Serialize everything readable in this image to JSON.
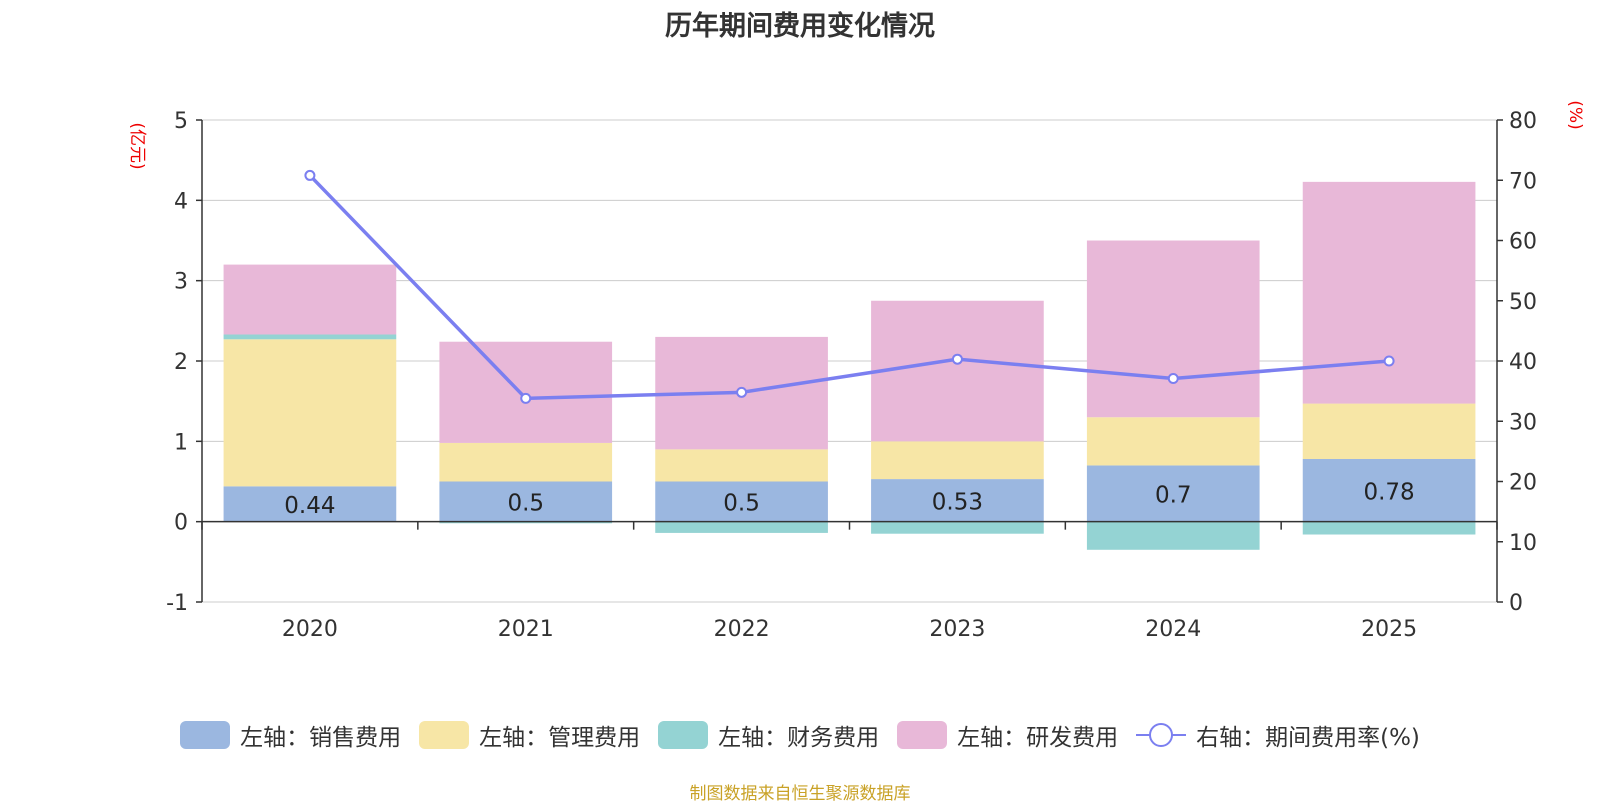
{
  "chart_data": {
    "type": "bar",
    "title": "历年期间费用变化情况",
    "categories": [
      "2020",
      "2021",
      "2022",
      "2023",
      "2024",
      "2025"
    ],
    "stacked": true,
    "left_axis": {
      "label": "(亿元)",
      "ylim": [
        -1,
        5
      ],
      "ticks": [
        "-1",
        "0",
        "1",
        "2",
        "3",
        "4",
        "5"
      ]
    },
    "right_axis": {
      "label": "(%)",
      "ylim": [
        0,
        80
      ],
      "ticks": [
        "0",
        "10",
        "20",
        "30",
        "40",
        "50",
        "60",
        "70",
        "80"
      ]
    },
    "series": [
      {
        "name": "左轴：销售费用",
        "axis": "left",
        "type": "bar",
        "color": "#9bb7e0",
        "values": [
          0.44,
          0.5,
          0.5,
          0.53,
          0.7,
          0.78
        ],
        "labels": [
          "0.44",
          "0.5",
          "0.5",
          "0.53",
          "0.7",
          "0.78"
        ]
      },
      {
        "name": "左轴：管理费用",
        "axis": "left",
        "type": "bar",
        "color": "#f7e6a6",
        "values": [
          1.83,
          0.48,
          0.4,
          0.47,
          0.6,
          0.69
        ]
      },
      {
        "name": "左轴：财务费用",
        "axis": "left",
        "type": "bar",
        "color": "#94d3d3",
        "values": [
          0.06,
          -0.02,
          -0.14,
          -0.15,
          -0.35,
          -0.16
        ]
      },
      {
        "name": "左轴：研发费用",
        "axis": "left",
        "type": "bar",
        "color": "#e8b8d8",
        "values": [
          0.87,
          1.26,
          1.4,
          1.75,
          2.2,
          2.76
        ]
      },
      {
        "name": "右轴：期间费用率(%)",
        "axis": "right",
        "type": "line",
        "color": "#7b7ff0",
        "values": [
          70.8,
          33.8,
          34.8,
          40.3,
          37.1,
          40.0
        ]
      }
    ],
    "legend_position": "bottom",
    "grid": true
  },
  "source_note": "制图数据来自恒生聚源数据库"
}
